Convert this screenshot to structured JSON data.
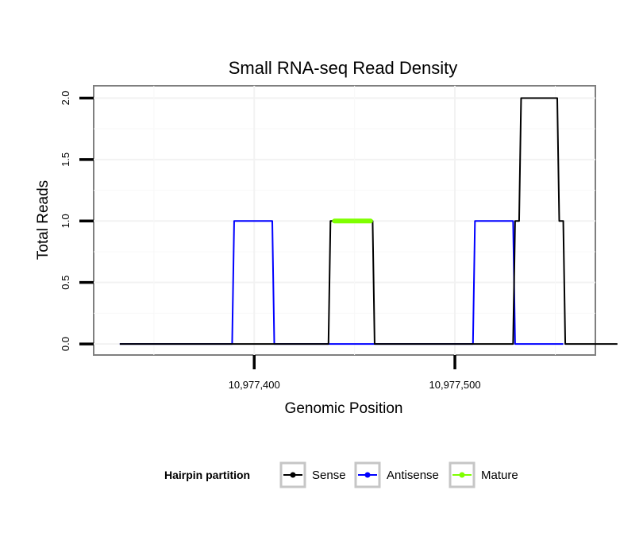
{
  "chart_data": {
    "type": "line",
    "title": "Small RNA-seq Read Density",
    "xlabel": "Genomic Position",
    "ylabel": "Total Reads",
    "xlim": [
      10977320,
      10977570
    ],
    "ylim": [
      -0.09,
      2.1
    ],
    "x_ticks": [
      {
        "value": 10977400,
        "label": "10,977,400"
      },
      {
        "value": 10977500,
        "label": "10,977,500"
      }
    ],
    "y_ticks": [
      {
        "value": 0.0,
        "label": "0.0"
      },
      {
        "value": 0.5,
        "label": "0.5"
      },
      {
        "value": 1.0,
        "label": "1.0"
      },
      {
        "value": 1.5,
        "label": "1.5"
      },
      {
        "value": 2.0,
        "label": "2.0"
      }
    ],
    "grid": true,
    "legend": {
      "title": "Hairpin partition",
      "position": "bottom"
    },
    "series": [
      {
        "name": "Sense",
        "color": "#000000",
        "x": [
          10977333,
          10977437,
          10977438,
          10977459,
          10977460,
          10977509,
          10977510,
          10977529,
          10977530,
          10977532,
          10977533,
          10977551,
          10977552,
          10977554,
          10977555,
          10977581
        ],
        "y": [
          0,
          0,
          1,
          1,
          0,
          0,
          0,
          0,
          1,
          1,
          2,
          2,
          1,
          1,
          0,
          0
        ]
      },
      {
        "name": "Antisense",
        "color": "#0000ff",
        "x": [
          10977333,
          10977389,
          10977390,
          10977409,
          10977410,
          10977509,
          10977510,
          10977529,
          10977530,
          10977554
        ],
        "y": [
          0,
          0,
          1,
          1,
          0,
          0,
          1,
          1,
          0,
          0
        ]
      },
      {
        "name": "Mature",
        "color": "#7fff00",
        "x": [
          10977440,
          10977458
        ],
        "y": [
          1,
          1
        ]
      }
    ]
  }
}
